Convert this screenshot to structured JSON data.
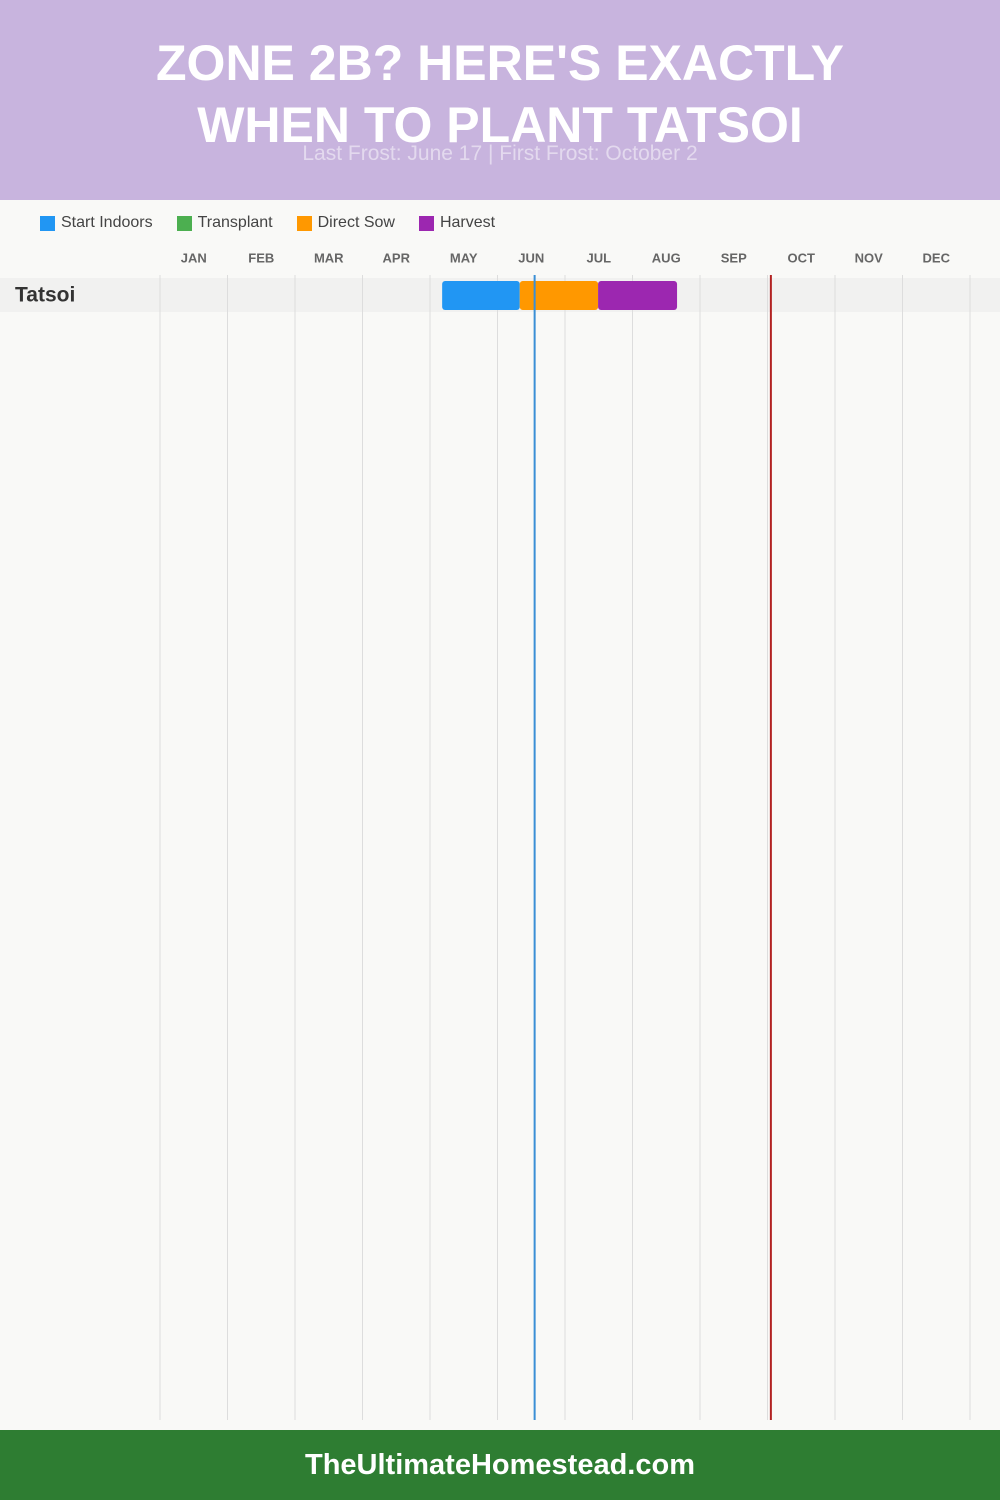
{
  "chart_data": {
    "type": "timeline",
    "title": "ZONE 2B? HERE'S EXACTLY WHEN TO PLANT TATSOI",
    "subtitle": "Last Frost: June 17 | First Frost: October 2",
    "categories": [
      "JAN",
      "FEB",
      "MAR",
      "APR",
      "MAY",
      "JUN",
      "JUL",
      "AUG",
      "SEP",
      "OCT",
      "NOV",
      "DEC"
    ],
    "xlim": [
      0,
      12
    ],
    "grid": true,
    "rows": [
      "Tatsoi"
    ],
    "series": [
      {
        "name": "Start Indoors",
        "color": "#2196f3",
        "start": 4.18,
        "end": 5.33
      },
      {
        "name": "Transplant",
        "color": "#4caf50"
      },
      {
        "name": "Direct Sow",
        "color": "#ff9800",
        "start": 5.33,
        "end": 6.49
      },
      {
        "name": "Harvest",
        "color": "#9c27b0",
        "start": 6.49,
        "end": 7.66
      }
    ],
    "frost_lines": [
      {
        "value": 5.55,
        "color": "#3a8fd6"
      },
      {
        "value": 9.05,
        "color": "#b22222"
      }
    ],
    "footer": "TheUltimateHomestead.com"
  }
}
